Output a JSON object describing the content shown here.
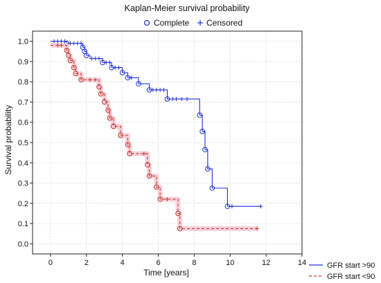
{
  "chart_data": {
    "type": "line",
    "title": "Kaplan-Meier survival probability",
    "xlabel": "Time  [years]",
    "ylabel": "Survival probability",
    "xlim": [
      -1,
      14
    ],
    "ylim": [
      -0.05,
      1.05
    ],
    "x_ticks": [
      0,
      2,
      4,
      6,
      8,
      10,
      12,
      14
    ],
    "y_ticks": [
      0.0,
      0.1,
      0.2,
      0.3,
      0.4,
      0.5,
      0.6,
      0.7,
      0.8,
      0.9,
      1.0
    ],
    "grid": true,
    "marker_legend": [
      {
        "label": "Complete",
        "symbol": "circle"
      },
      {
        "label": "Censored",
        "symbol": "plus"
      }
    ],
    "series": [
      {
        "name": "GFR start >90",
        "color": "#1f2fd6",
        "dash": "solid",
        "steps": [
          [
            0,
            1.0
          ],
          [
            0.9,
            0.99
          ],
          [
            1.8,
            0.97
          ],
          [
            1.9,
            0.95
          ],
          [
            2.0,
            0.93
          ],
          [
            2.2,
            0.915
          ],
          [
            2.9,
            0.895
          ],
          [
            3.4,
            0.87
          ],
          [
            4.0,
            0.845
          ],
          [
            4.3,
            0.82
          ],
          [
            4.9,
            0.79
          ],
          [
            5.5,
            0.76
          ],
          [
            6.5,
            0.715
          ],
          [
            8.3,
            0.635
          ],
          [
            8.45,
            0.555
          ],
          [
            8.6,
            0.465
          ],
          [
            8.75,
            0.37
          ],
          [
            9.0,
            0.275
          ],
          [
            9.85,
            0.185
          ],
          [
            11.7,
            0.185
          ]
        ],
        "events": [
          [
            0.9,
            0.99
          ],
          [
            1.8,
            0.97
          ],
          [
            1.9,
            0.95
          ],
          [
            2.0,
            0.93
          ],
          [
            2.9,
            0.895
          ],
          [
            3.4,
            0.87
          ],
          [
            4.0,
            0.845
          ],
          [
            4.3,
            0.82
          ],
          [
            4.9,
            0.79
          ],
          [
            5.5,
            0.76
          ],
          [
            6.5,
            0.715
          ],
          [
            8.3,
            0.635
          ],
          [
            8.45,
            0.555
          ],
          [
            8.6,
            0.465
          ],
          [
            8.75,
            0.37
          ],
          [
            9.0,
            0.275
          ],
          [
            9.85,
            0.185
          ]
        ],
        "censored": [
          [
            0.2,
            1.0
          ],
          [
            0.4,
            1.0
          ],
          [
            0.6,
            1.0
          ],
          [
            0.8,
            1.0
          ],
          [
            1.1,
            0.99
          ],
          [
            1.3,
            0.99
          ],
          [
            1.5,
            0.99
          ],
          [
            1.7,
            0.99
          ],
          [
            2.3,
            0.915
          ],
          [
            2.5,
            0.915
          ],
          [
            2.7,
            0.915
          ],
          [
            3.1,
            0.895
          ],
          [
            3.3,
            0.895
          ],
          [
            3.6,
            0.87
          ],
          [
            3.8,
            0.87
          ],
          [
            4.5,
            0.82
          ],
          [
            5.7,
            0.76
          ],
          [
            5.9,
            0.76
          ],
          [
            6.1,
            0.76
          ],
          [
            6.3,
            0.76
          ],
          [
            6.8,
            0.715
          ],
          [
            7.0,
            0.715
          ],
          [
            7.3,
            0.715
          ],
          [
            7.6,
            0.715
          ],
          [
            10.1,
            0.185
          ],
          [
            11.7,
            0.185
          ]
        ]
      },
      {
        "name": "GFR start <90",
        "color": "#c0392b",
        "dash": "dashed",
        "steps": [
          [
            0,
            0.98
          ],
          [
            0.9,
            0.955
          ],
          [
            1.0,
            0.93
          ],
          [
            1.1,
            0.905
          ],
          [
            1.3,
            0.87
          ],
          [
            1.4,
            0.84
          ],
          [
            1.7,
            0.81
          ],
          [
            2.7,
            0.775
          ],
          [
            2.8,
            0.74
          ],
          [
            3.0,
            0.7
          ],
          [
            3.2,
            0.66
          ],
          [
            3.3,
            0.62
          ],
          [
            3.5,
            0.58
          ],
          [
            3.9,
            0.535
          ],
          [
            4.3,
            0.49
          ],
          [
            4.4,
            0.445
          ],
          [
            5.4,
            0.39
          ],
          [
            5.5,
            0.335
          ],
          [
            5.9,
            0.28
          ],
          [
            6.1,
            0.22
          ],
          [
            7.1,
            0.15
          ],
          [
            7.2,
            0.075
          ],
          [
            11.5,
            0.075
          ]
        ],
        "events": [
          [
            0.9,
            0.955
          ],
          [
            1.0,
            0.93
          ],
          [
            1.1,
            0.905
          ],
          [
            1.3,
            0.87
          ],
          [
            1.4,
            0.84
          ],
          [
            1.7,
            0.81
          ],
          [
            2.7,
            0.775
          ],
          [
            2.8,
            0.74
          ],
          [
            3.0,
            0.7
          ],
          [
            3.2,
            0.66
          ],
          [
            3.3,
            0.62
          ],
          [
            3.5,
            0.58
          ],
          [
            3.9,
            0.535
          ],
          [
            4.3,
            0.49
          ],
          [
            4.4,
            0.445
          ],
          [
            5.4,
            0.39
          ],
          [
            5.5,
            0.335
          ],
          [
            5.9,
            0.28
          ],
          [
            6.1,
            0.22
          ],
          [
            7.1,
            0.15
          ],
          [
            7.2,
            0.075
          ]
        ],
        "censored": [
          [
            0.4,
            0.98
          ],
          [
            0.6,
            0.98
          ],
          [
            2.2,
            0.81
          ],
          [
            2.5,
            0.81
          ],
          [
            5.2,
            0.445
          ],
          [
            6.5,
            0.22
          ],
          [
            11.5,
            0.075
          ]
        ]
      }
    ]
  }
}
